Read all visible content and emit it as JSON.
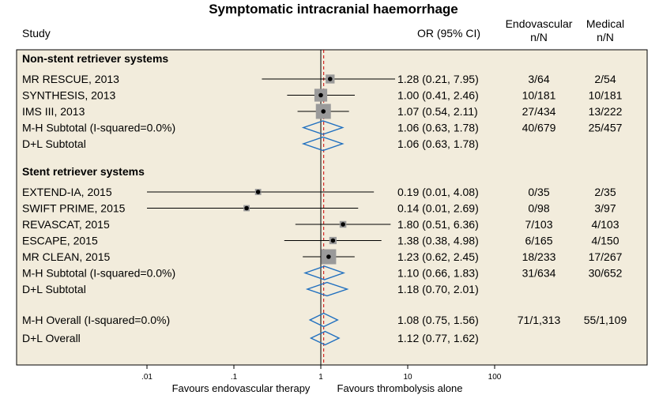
{
  "chart_data": {
    "type": "forest",
    "title": "Symptomatic intracranial haemorrhage",
    "columns": {
      "study": "Study",
      "or_ci": "OR (95% CI)",
      "endovascular": [
        "Endovascular",
        "n/N"
      ],
      "medical": [
        "Medical",
        "n/N"
      ]
    },
    "groups": [
      {
        "heading": "Non-stent retriever systems",
        "rows": [
          {
            "kind": "study",
            "label": "MR RESCUE, 2013",
            "or": 1.28,
            "lo": 0.21,
            "hi": 7.95,
            "or_text": "1.28 (0.21, 7.95)",
            "endo": "3/64",
            "med": "2/54",
            "weight": 0.45
          },
          {
            "kind": "study",
            "label": "SYNTHESIS, 2013",
            "or": 1.0,
            "lo": 0.41,
            "hi": 2.46,
            "or_text": "1.00 (0.41, 2.46)",
            "endo": "10/181",
            "med": "10/181",
            "weight": 0.8
          },
          {
            "kind": "study",
            "label": "IMS III, 2013",
            "or": 1.07,
            "lo": 0.54,
            "hi": 2.11,
            "or_text": "1.07 (0.54, 2.11)",
            "endo": "27/434",
            "med": "13/222",
            "weight": 1.0
          },
          {
            "kind": "subtotal",
            "label": "M-H Subtotal (I-squared=0.0%)",
            "or": 1.06,
            "lo": 0.63,
            "hi": 1.78,
            "or_text": "1.06 (0.63, 1.78)",
            "endo": "40/679",
            "med": "25/457"
          },
          {
            "kind": "subtotal",
            "label": "D+L Subtotal",
            "or": 1.06,
            "lo": 0.63,
            "hi": 1.78,
            "or_text": "1.06 (0.63, 1.78)",
            "endo": "",
            "med": ""
          }
        ]
      },
      {
        "heading": "Stent retriever systems",
        "rows": [
          {
            "kind": "study",
            "label": "EXTEND-IA, 2015",
            "or": 0.19,
            "lo": 0.01,
            "hi": 4.08,
            "or_text": "0.19 (0.01, 4.08)",
            "endo": "0/35",
            "med": "2/35",
            "weight": 0.2
          },
          {
            "kind": "study",
            "label": "SWIFT PRIME, 2015",
            "or": 0.14,
            "lo": 0.01,
            "hi": 2.69,
            "or_text": "0.14 (0.01, 2.69)",
            "endo": "0/98",
            "med": "3/97",
            "weight": 0.2
          },
          {
            "kind": "study",
            "label": "REVASCAT, 2015",
            "or": 1.8,
            "lo": 0.51,
            "hi": 6.36,
            "or_text": "1.80 (0.51, 6.36)",
            "endo": "7/103",
            "med": "4/103",
            "weight": 0.25
          },
          {
            "kind": "study",
            "label": "ESCAPE, 2015",
            "or": 1.38,
            "lo": 0.38,
            "hi": 4.98,
            "or_text": "1.38 (0.38, 4.98)",
            "endo": "6/165",
            "med": "4/150",
            "weight": 0.3
          },
          {
            "kind": "study",
            "label": "MR CLEAN, 2015",
            "or": 1.23,
            "lo": 0.62,
            "hi": 2.45,
            "or_text": "1.23 (0.62, 2.45)",
            "endo": "18/233",
            "med": "17/267",
            "weight": 1.0
          },
          {
            "kind": "subtotal",
            "label": "M-H Subtotal (I-squared=0.0%)",
            "or": 1.1,
            "lo": 0.66,
            "hi": 1.83,
            "or_text": "1.10 (0.66, 1.83)",
            "endo": "31/634",
            "med": "30/652"
          },
          {
            "kind": "subtotal",
            "label": "D+L Subtotal",
            "or": 1.18,
            "lo": 0.7,
            "hi": 2.01,
            "or_text": "1.18 (0.70, 2.01)",
            "endo": "",
            "med": ""
          }
        ]
      }
    ],
    "overall": [
      {
        "kind": "overall",
        "label": "M-H Overall (I-squared=0.0%)",
        "or": 1.08,
        "lo": 0.75,
        "hi": 1.56,
        "or_text": "1.08 (0.75, 1.56)",
        "endo": "71/1,313",
        "med": "55/1,109"
      },
      {
        "kind": "overall",
        "label": "D+L Overall",
        "or": 1.12,
        "lo": 0.77,
        "hi": 1.62,
        "or_text": "1.12 (0.77, 1.62)",
        "endo": "",
        "med": ""
      }
    ],
    "x_axis": {
      "scale": "log",
      "range": [
        0.01,
        100
      ],
      "ticks": [
        0.01,
        0.1,
        1,
        10,
        100
      ],
      "tick_labels": [
        ".01",
        ".1",
        "1",
        "10",
        "100"
      ],
      "left_label": "Favours endovascular therapy",
      "right_label": "Favours thrombolysis alone"
    },
    "colors": {
      "panel_bg": "#f2ecdc",
      "diamond": "#1f6fbf",
      "pooled_line": "#cc0000",
      "weight_box": "#9a9a9a",
      "point": "#000000"
    }
  }
}
